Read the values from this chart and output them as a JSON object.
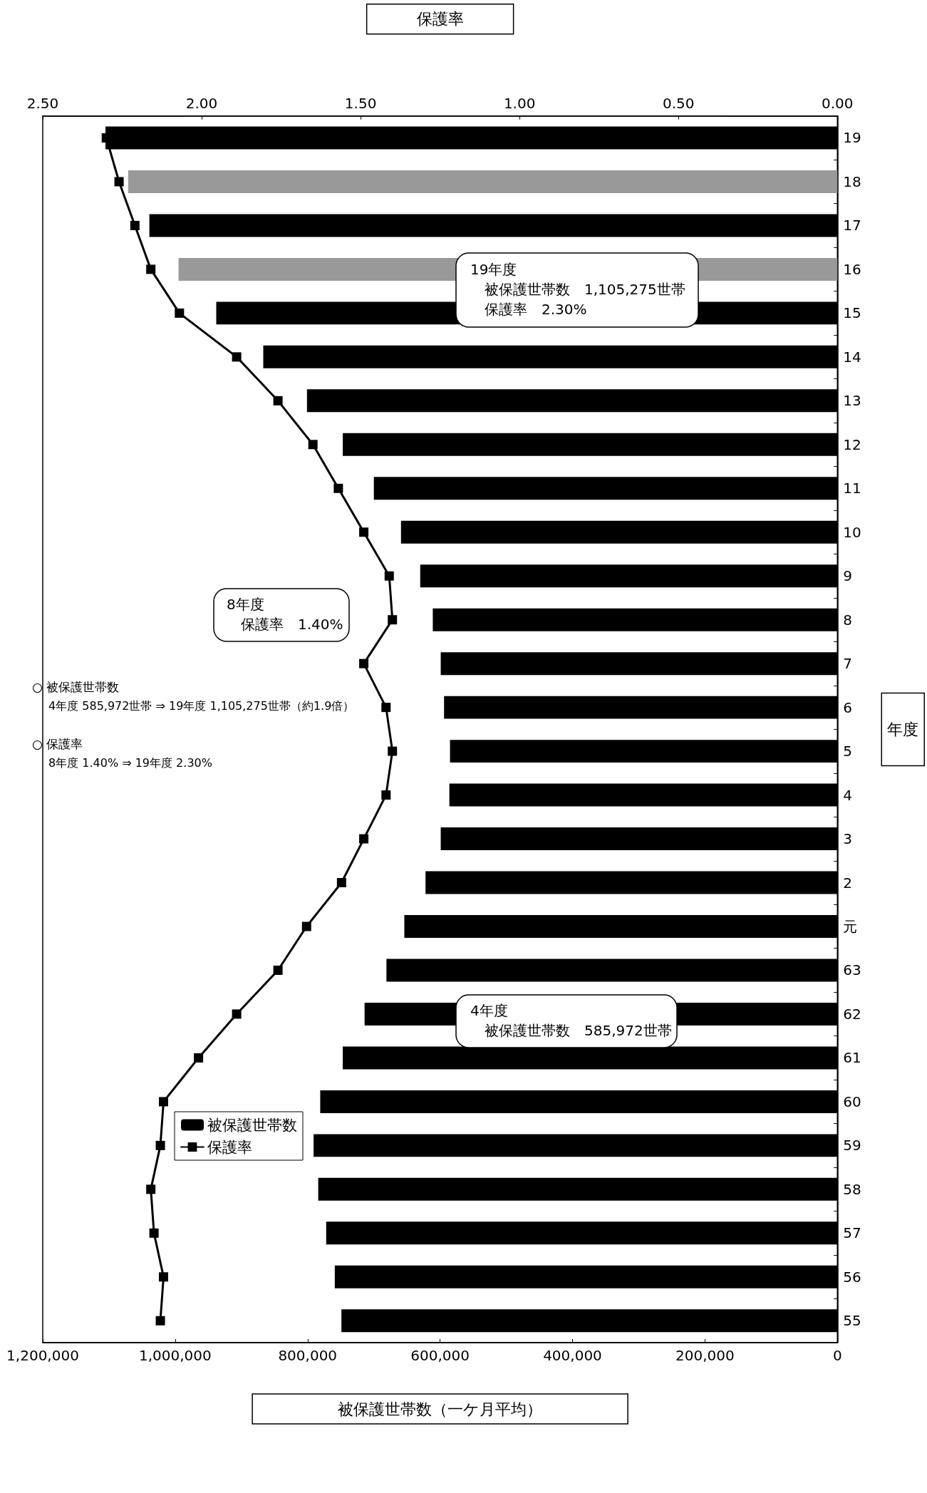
{
  "chart_data": {
    "type": "bar",
    "orientation": "horizontal",
    "xlabel": "被保護世帯数（一ケ月平均）",
    "ylabel": "年度",
    "x2label": "保護率",
    "categories": [
      "19",
      "18",
      "17",
      "16",
      "15",
      "14",
      "13",
      "12",
      "11",
      "10",
      "9",
      "8",
      "7",
      "6",
      "5",
      "4",
      "3",
      "2",
      "元",
      "63",
      "62",
      "61",
      "60",
      "59",
      "58",
      "57",
      "56",
      "55"
    ],
    "series": [
      {
        "name": "被保護世帯数",
        "colors": [
          "#000000",
          "#999999",
          "#000000",
          "#999999",
          "#000000",
          "#000000",
          "#000000",
          "#000000",
          "#000000",
          "#000000",
          "#000000",
          "#000000",
          "#000000",
          "#000000",
          "#000000",
          "#000000",
          "#000000",
          "#000000",
          "#000000",
          "#000000",
          "#000000",
          "#000000",
          "#000000",
          "#000000",
          "#000000",
          "#000000",
          "#000000",
          "#000000"
        ],
        "values": [
          1105275,
          1071000,
          1039000,
          995000,
          938000,
          867000,
          801000,
          747000,
          700000,
          659000,
          630000,
          611000,
          599000,
          594000,
          585000,
          585972,
          599000,
          622000,
          654000,
          681000,
          714000,
          747000,
          781000,
          791000,
          784000,
          772000,
          759000,
          749000
        ]
      },
      {
        "name": "保護率",
        "type": "line",
        "axis": "x2",
        "color": "#000000",
        "marker": "square",
        "line_style": "solid",
        "values": [
          2.3,
          2.26,
          2.21,
          2.16,
          2.07,
          1.89,
          1.76,
          1.65,
          1.57,
          1.49,
          1.41,
          1.4,
          1.49,
          1.42,
          1.4,
          1.42,
          1.49,
          1.56,
          1.67,
          1.76,
          1.89,
          2.01,
          2.12,
          2.13,
          2.16,
          2.15,
          2.12,
          2.13
        ]
      }
    ],
    "xlim": [
      1200000,
      0
    ],
    "xticks": [
      {
        "value": 1200000,
        "label": "1,200,000"
      },
      {
        "value": 1000000,
        "label": "1,000,000"
      },
      {
        "value": 800000,
        "label": "800,000"
      },
      {
        "value": 600000,
        "label": "600,000"
      },
      {
        "value": 400000,
        "label": "400,000"
      },
      {
        "value": 200000,
        "label": "200,000"
      },
      0
    ],
    "x2lim": [
      2.5,
      0
    ],
    "x2ticks": [
      {
        "value": 2.5,
        "label": "2.50"
      },
      {
        "value": 2,
        "label": "2.00"
      },
      {
        "value": 1.5,
        "label": "1.50"
      },
      {
        "value": 1,
        "label": "1.00"
      },
      {
        "value": 0.5,
        "label": "0.50"
      },
      {
        "value": 0,
        "label": "0.00"
      }
    ],
    "grid": false,
    "legend": "bottom left",
    "annotations": [
      "○ 被保護世帯数",
      "4年度 585,972世帯 ⇒ 19年度 1,105,275世帯（約1.9倍）",
      "○ 保護率",
      "8年度 1.40% ⇒ 19年度 2.30%",
      "19年度",
      "被保護世帯数　1,105,275世帯",
      "保護率　2.30%",
      "8年度",
      "保護率　1.40%",
      "4年度",
      "被保護世帯数　585,972世帯"
    ]
  }
}
